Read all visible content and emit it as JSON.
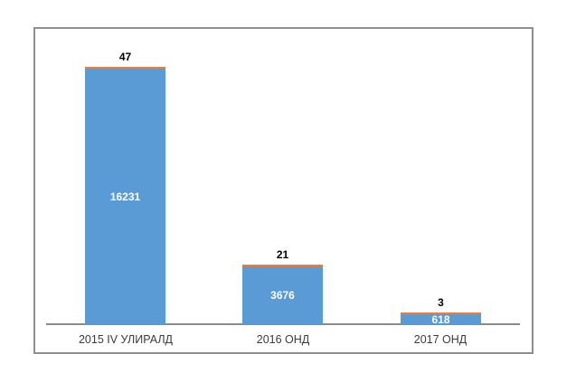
{
  "chart": {
    "frame_border_color": "#8f8f8f",
    "axis_color": "#8a8a8a",
    "background_color": "#ffffff"
  },
  "chart_data": {
    "type": "bar",
    "subtype": "stacked-column",
    "title": "",
    "xlabel": "",
    "ylabel": "",
    "legend": "none",
    "grid": false,
    "ylim": [
      0,
      17000
    ],
    "categories": [
      "2015 IV УЛИРАЛД",
      "2016 ОНД",
      "2017 ОНД"
    ],
    "series": [
      {
        "name": "blue-main-series",
        "color": "#5b9bd5",
        "values": [
          16231,
          3676,
          618
        ],
        "labels": [
          "16231",
          "3676",
          "618"
        ],
        "label_position": "center",
        "label_color": "#ffffff"
      },
      {
        "name": "orange-cap-series",
        "color": "#ed7d31",
        "values": [
          47,
          21,
          3
        ],
        "labels": [
          "47",
          "21",
          "3"
        ],
        "label_position": "outside-end",
        "label_color": "#000000"
      }
    ]
  }
}
